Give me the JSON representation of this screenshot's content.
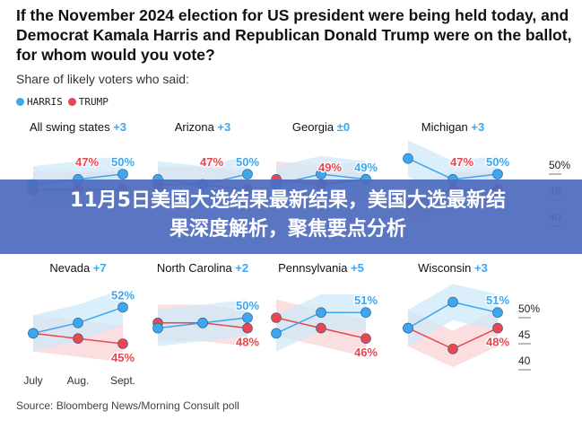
{
  "header": {
    "title": "If the November 2024 election for US president were being held today, and Democrat Kamala Harris and Republican Donald Trump were on the ballot, for whom would you vote?",
    "subtitle": "Share of likely voters who said:"
  },
  "banner": {
    "line1": "11月5日美国大选结果最新结果，美国大选最新结",
    "line2": "果深度解析，聚焦要点分析"
  },
  "footer": {
    "source": "Source: Bloomberg News/Morning Consult poll"
  },
  "colors": {
    "harris": "#3ea6ee",
    "trump": "#e8474f",
    "harris_band": "#cfe9fa",
    "trump_band": "#fad3d6"
  },
  "chart_data": {
    "type": "line",
    "legend": [
      "HARRIS",
      "TRUMP"
    ],
    "legend_placement": "top-left",
    "x": [
      "July",
      "Aug.",
      "Sept."
    ],
    "y_ticks": [
      "50%",
      "45",
      "40"
    ],
    "ylim": [
      40,
      55
    ],
    "panels": [
      {
        "name": "All swing states",
        "diff": "+3",
        "harris": [
          48,
          49,
          50
        ],
        "trump": [
          47,
          47,
          47
        ],
        "harris_label": "50%",
        "trump_label": "47%"
      },
      {
        "name": "Arizona",
        "diff": "+3",
        "harris": [
          49,
          48,
          50
        ],
        "trump": [
          48,
          48,
          47
        ],
        "harris_label": "50%",
        "trump_label": "47%"
      },
      {
        "name": "Georgia",
        "diff": "±0",
        "harris": [
          48,
          50,
          49
        ],
        "trump": [
          49,
          48,
          49
        ],
        "harris_label": "49%",
        "trump_label": "49%"
      },
      {
        "name": "Michigan",
        "diff": "+3",
        "harris": [
          53,
          49,
          50
        ],
        "trump": [
          44,
          47,
          47
        ],
        "harris_label": "50%",
        "trump_label": "47%"
      },
      {
        "name": "Nevada",
        "diff": "+7",
        "harris": [
          47,
          49,
          52
        ],
        "trump": [
          47,
          46,
          45
        ],
        "harris_label": "52%",
        "trump_label": "45%"
      },
      {
        "name": "North Carolina",
        "diff": "+2",
        "harris": [
          48,
          49,
          50
        ],
        "trump": [
          49,
          49,
          48
        ],
        "harris_label": "50%",
        "trump_label": "48%"
      },
      {
        "name": "Pennsylvania",
        "diff": "+5",
        "harris": [
          47,
          51,
          51
        ],
        "trump": [
          50,
          48,
          46
        ],
        "harris_label": "51%",
        "trump_label": "46%"
      },
      {
        "name": "Wisconsin",
        "diff": "+3",
        "harris": [
          48,
          53,
          51
        ],
        "trump": [
          48,
          44,
          48
        ],
        "harris_label": "51%",
        "trump_label": "48%"
      }
    ]
  }
}
